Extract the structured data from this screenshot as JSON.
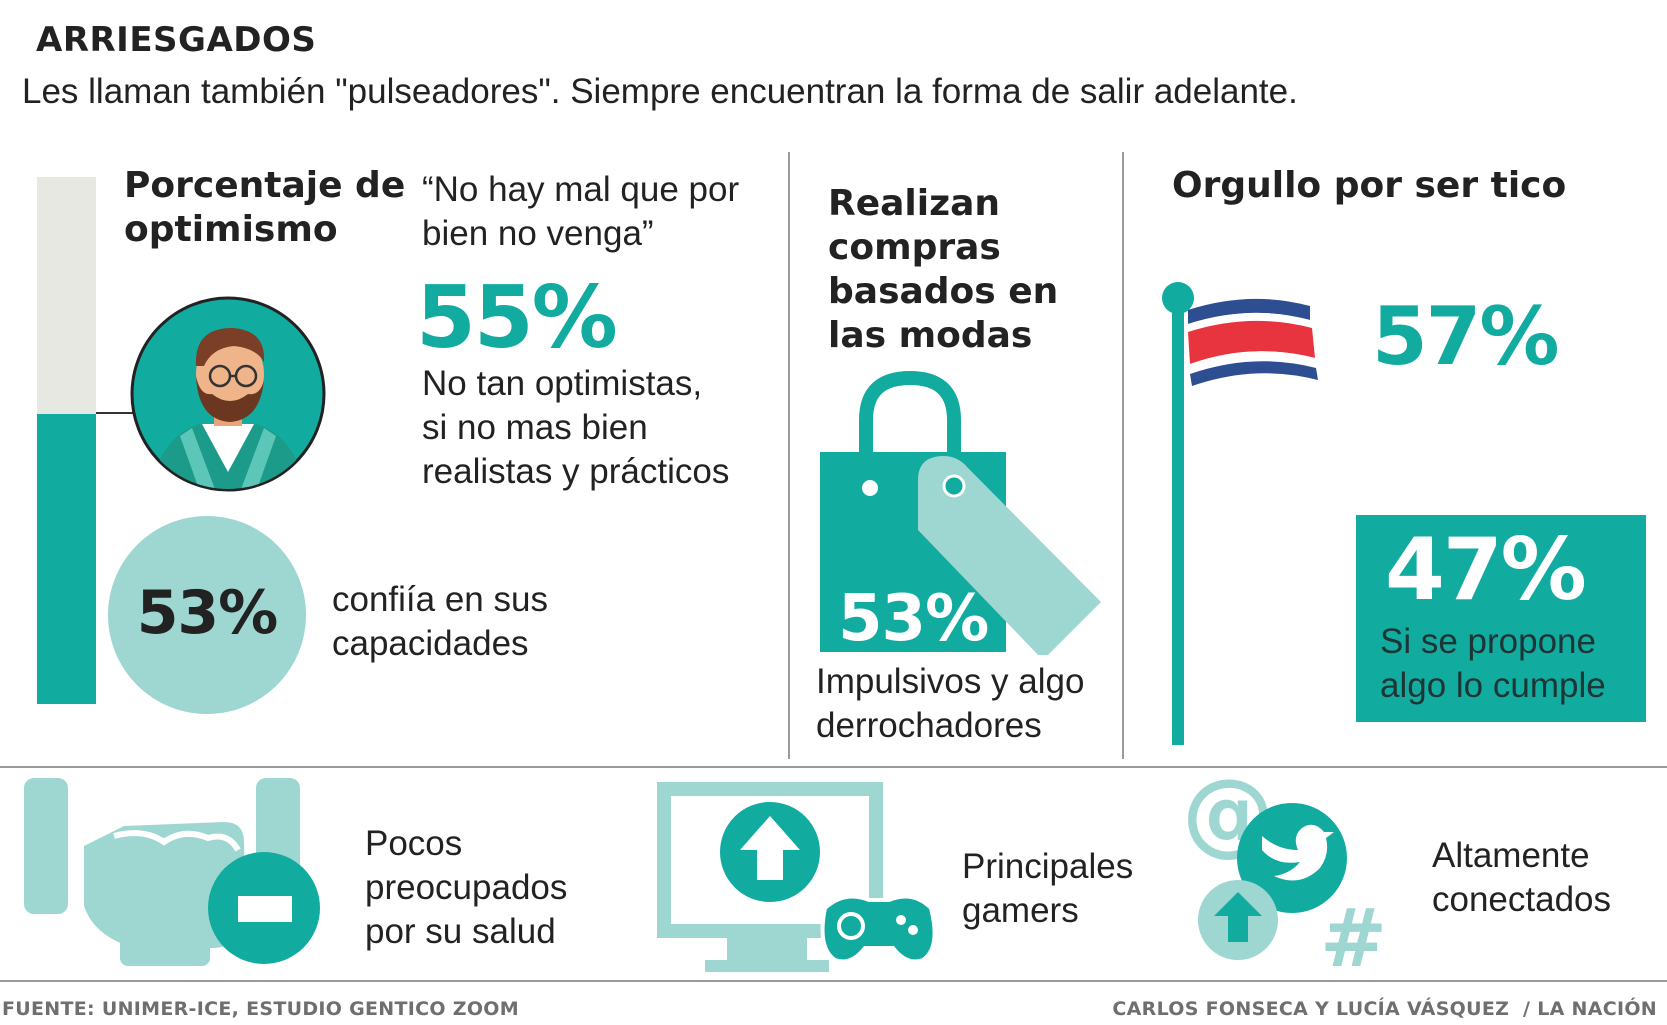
{
  "header": {
    "title": "ARRIESGADOS",
    "subtitle": "Les llaman también \"pulseadores\". Siempre encuentran la forma de salir adelante."
  },
  "optimism": {
    "heading_line1": "Porcentaje de",
    "heading_line2": "optimismo",
    "quote_line1": "“No hay mal que por",
    "quote_line2": "bien no venga”",
    "pct_realistic": "55%",
    "realistic_line1": "No tan optimistas,",
    "realistic_line2": "si no mas bien",
    "realistic_line3": "realistas y prácticos",
    "pct_confident": "53%",
    "confident_line1": "confiía en sus",
    "confident_line2": "capacidades",
    "bar_fill_fraction": 0.55
  },
  "fashion": {
    "heading_line1": "Realizan",
    "heading_line2": "compras",
    "heading_line3": "basados en",
    "heading_line4": "las modas",
    "pct": "53%",
    "desc_line1": "Impulsivos y algo",
    "desc_line2": "derrochadores"
  },
  "pride": {
    "heading": "Orgullo por ser tico",
    "pct_pride": "57%",
    "pct_goal": "47%",
    "goal_line1": "Si se propone",
    "goal_line2": "algo lo cumple"
  },
  "bottom": {
    "health_line1": "Pocos",
    "health_line2": "preocupados",
    "health_line3": "por su salud",
    "gamers_line1": "Principales",
    "gamers_line2": "gamers",
    "connected_line1": "Altamente",
    "connected_line2": "conectados"
  },
  "footer": {
    "source": "FUENTE: UNIMER-ICE, ESTUDIO GENTICO ZOOM",
    "credits": "CARLOS FONSECA Y LUCÍA VÁSQUEZ  / LA NACIÓN"
  },
  "colors": {
    "teal": "#12aba0",
    "light_teal": "#9ed6d2",
    "bar_bg": "#e8e8e3",
    "flag_red": "#e8343f",
    "flag_blue": "#2d4f92"
  },
  "icons": [
    "man-avatar-icon",
    "shopping-bag-icon",
    "price-tag-icon",
    "costa-rica-flag-icon",
    "fist-minus-icon",
    "monitor-upload-icon",
    "gamepad-icon",
    "at-sign-icon",
    "twitter-bird-icon",
    "upload-icon",
    "hashtag-icon"
  ]
}
